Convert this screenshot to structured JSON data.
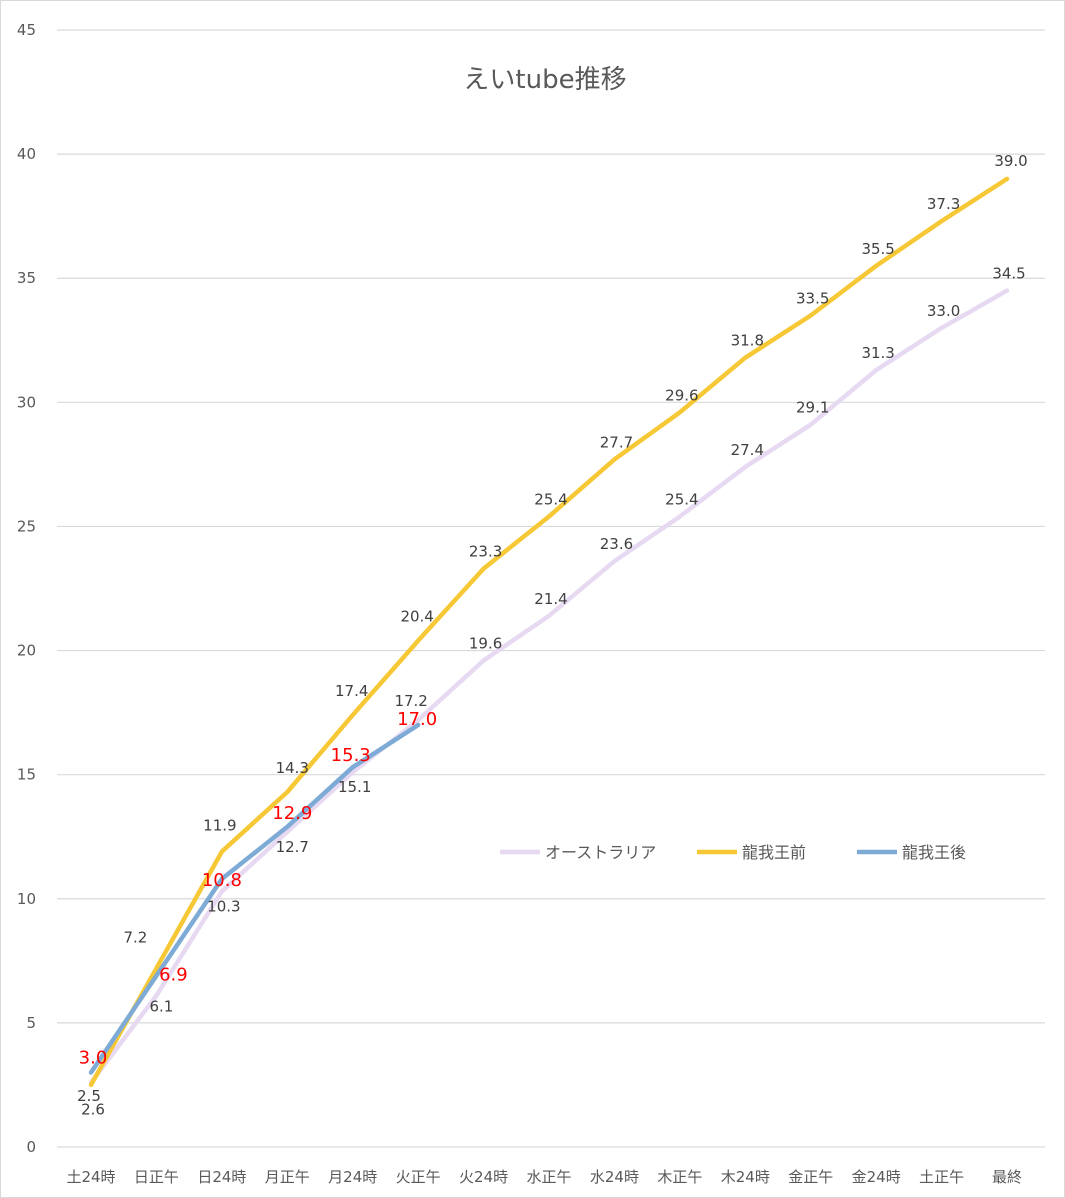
{
  "chart_data": {
    "type": "line",
    "title": "えいtube推移",
    "xlabel": "",
    "ylabel": "",
    "ylim": [
      0,
      45
    ],
    "yticks": [
      0,
      5,
      10,
      15,
      20,
      25,
      30,
      35,
      40,
      45
    ],
    "grid": true,
    "legend_position": "right-middle",
    "categories": [
      "土24時",
      "日正午",
      "日24時",
      "月正午",
      "月24時",
      "火正午",
      "火24時",
      "水正午",
      "水24時",
      "木正午",
      "木24時",
      "金正午",
      "金24時",
      "土正午",
      "最終"
    ],
    "series": [
      {
        "name": "オーストラリア",
        "color": "#e6d9f1",
        "label_color": "#404040",
        "values": [
          2.6,
          6.1,
          10.3,
          12.7,
          15.1,
          17.2,
          19.6,
          21.4,
          23.6,
          25.4,
          27.4,
          29.1,
          31.3,
          33.0,
          34.5
        ],
        "labels": [
          "2.6",
          "6.1",
          "10.3",
          "12.7",
          "15.1",
          "17.2",
          "19.6",
          "21.4",
          "23.6",
          "25.4",
          "27.4",
          "29.1",
          "31.3",
          "33.0",
          "34.5"
        ]
      },
      {
        "name": "龍我王前",
        "color": "#f7c836",
        "label_color": "#404040",
        "values": [
          2.5,
          7.2,
          11.9,
          14.3,
          17.4,
          20.4,
          23.3,
          25.4,
          27.7,
          29.6,
          31.8,
          33.5,
          35.5,
          37.3,
          39.0
        ],
        "labels": [
          "2.5",
          "7.2",
          "11.9",
          "14.3",
          "17.4",
          "20.4",
          "23.3",
          "25.4",
          "27.7",
          "29.6",
          "31.8",
          "33.5",
          "35.5",
          "37.3",
          "39.0"
        ]
      },
      {
        "name": "龍我王後",
        "color": "#7eaad6",
        "label_color": "#ff0000",
        "values": [
          3.0,
          6.9,
          10.8,
          12.9,
          15.3,
          17.0,
          null,
          null,
          null,
          null,
          null,
          null,
          null,
          null,
          null
        ],
        "labels": [
          "3.0",
          "6.9",
          "10.8",
          "12.9",
          "15.3",
          "17.0",
          null,
          null,
          null,
          null,
          null,
          null,
          null,
          null,
          null
        ]
      }
    ]
  }
}
